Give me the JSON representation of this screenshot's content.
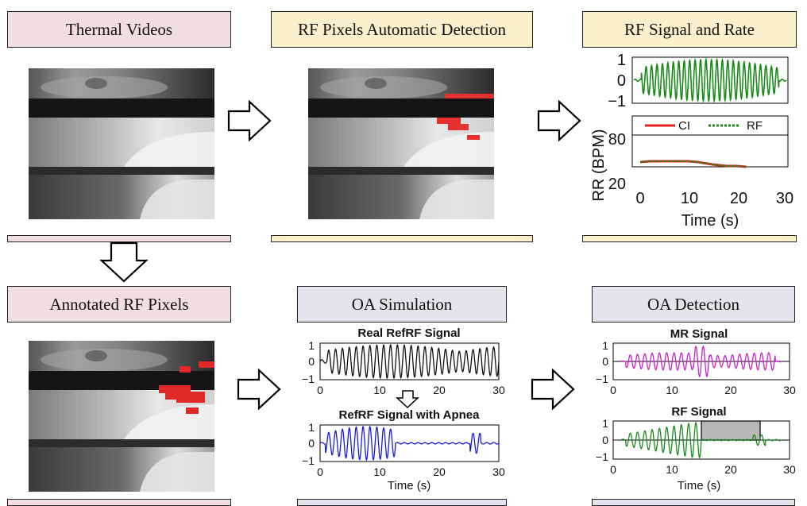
{
  "headers": {
    "thermal": "Thermal Videos",
    "detection": "RF Pixels Automatic Detection",
    "rate": "RF Signal and Rate",
    "annotated": "Annotated RF Pixels",
    "oa_sim": "OA Simulation",
    "oa_det": "OA Detection"
  },
  "colors": {
    "pink": "#f2dedf",
    "yellow": "#fcefcb",
    "lavender": "#e6e3ee",
    "green": "#1a8a1a",
    "red": "#e02020",
    "black": "#111111",
    "blue": "#1a1add",
    "magenta": "#cc22cc",
    "shade": "#b8b8b8"
  },
  "chart_data": [
    {
      "id": "rf_signal",
      "type": "line",
      "title": "",
      "xlabel": "",
      "ylabel": "",
      "xlim": [
        0,
        30
      ],
      "ylim": [
        -1,
        1
      ],
      "yticks": [
        1,
        0,
        -1
      ],
      "ytick_labels": [
        "1",
        "0",
        "−1"
      ],
      "series": [
        {
          "color": "green",
          "x": [
            0,
            30
          ],
          "description_values": "oscillating signal, amplitude up to 1"
        }
      ]
    },
    {
      "id": "rr",
      "type": "line",
      "title": "",
      "xlabel": "Time (s)",
      "ylabel": "RR (BPM)",
      "xlim": [
        0,
        30
      ],
      "ylim": [
        20,
        80
      ],
      "xticks": [
        0,
        10,
        20,
        30
      ],
      "yticks": [
        80,
        20
      ],
      "legend": [
        "CI",
        "RF"
      ],
      "series": [
        {
          "name": "CI",
          "color": "red",
          "x": [
            0,
            2,
            5,
            10,
            12,
            15,
            18,
            20,
            22
          ],
          "y": [
            50,
            51,
            51,
            51,
            50,
            47,
            45,
            45,
            44
          ]
        },
        {
          "name": "RF",
          "color": "green",
          "x": [
            0,
            2,
            5,
            10,
            12,
            15,
            18,
            20,
            22
          ],
          "y": [
            50,
            51,
            51,
            51,
            50,
            47,
            45,
            45,
            44
          ]
        }
      ]
    },
    {
      "id": "real_refrf",
      "type": "line",
      "title": "Real RefRF Signal",
      "xlim": [
        0,
        30
      ],
      "ylim": [
        -1,
        1
      ],
      "xticks": [
        0,
        10,
        20,
        30
      ],
      "yticks": [
        1,
        0,
        -1
      ],
      "series": [
        {
          "color": "black"
        }
      ]
    },
    {
      "id": "refrf_apnea",
      "type": "line",
      "title": "RefRF Signal with Apnea",
      "xlabel": "Time (s)",
      "xlim": [
        0,
        30
      ],
      "ylim": [
        -1,
        1
      ],
      "xticks": [
        0,
        10,
        20,
        30
      ],
      "yticks": [
        1,
        0,
        -1
      ],
      "series": [
        {
          "color": "blue"
        }
      ]
    },
    {
      "id": "mr_signal",
      "type": "line",
      "title": "MR Signal",
      "xlim": [
        0,
        30
      ],
      "ylim": [
        -1,
        1
      ],
      "xticks": [
        0,
        10,
        20,
        30
      ],
      "yticks": [
        1,
        0,
        -1
      ],
      "series": [
        {
          "color": "magenta"
        }
      ]
    },
    {
      "id": "rf_signal_det",
      "type": "line",
      "title": "RF Signal",
      "xlabel": "Time (s)",
      "xlim": [
        0,
        30
      ],
      "ylim": [
        -1,
        1
      ],
      "xticks": [
        0,
        10,
        20,
        30
      ],
      "yticks": [
        1,
        0,
        -1
      ],
      "shaded_region": [
        15,
        25
      ],
      "series": [
        {
          "color": "green"
        }
      ]
    }
  ],
  "tick_text": {
    "one": "1",
    "zero": "0",
    "minus_one": "−1",
    "t0": "0",
    "t10": "10",
    "t20": "20",
    "t30": "30",
    "y80": "80",
    "y20": "20",
    "legend_ci": "CI",
    "legend_rf": "RF",
    "rr_label": "RR (BPM)",
    "time_label": "Time (s)"
  }
}
